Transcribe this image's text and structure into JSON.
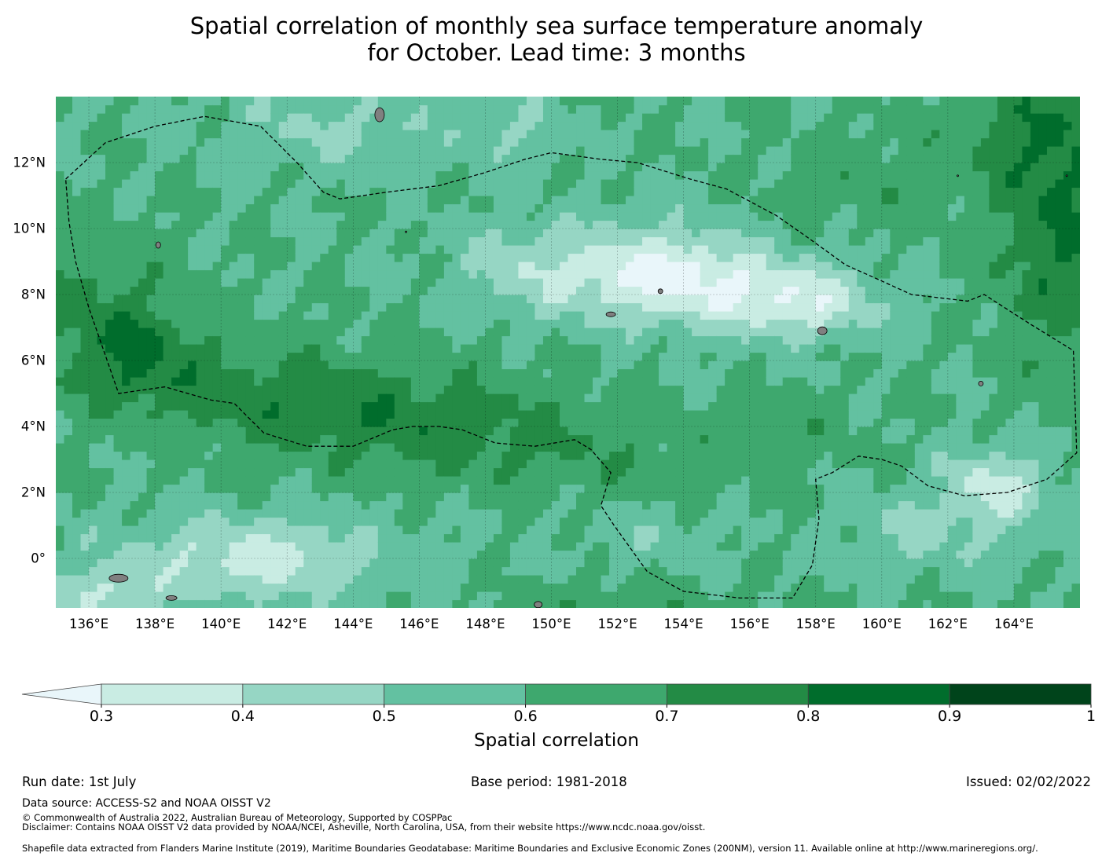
{
  "title": {
    "line1": "Spatial correlation of monthly sea surface temperature anomaly",
    "line2": "for October. Lead time: 3 months"
  },
  "map": {
    "lon_range": [
      135,
      166
    ],
    "lat_range": [
      -1.5,
      14
    ],
    "lon_ticks": [
      136,
      138,
      140,
      142,
      144,
      146,
      148,
      150,
      152,
      154,
      156,
      158,
      160,
      162,
      164
    ],
    "lon_labels": [
      "136°E",
      "138°E",
      "140°E",
      "142°E",
      "144°E",
      "146°E",
      "148°E",
      "150°E",
      "152°E",
      "154°E",
      "156°E",
      "158°E",
      "160°E",
      "162°E",
      "164°E"
    ],
    "lat_ticks": [
      12,
      10,
      8,
      6,
      4,
      2,
      0
    ],
    "lat_labels": [
      "12°N",
      "10°N",
      "8°N",
      "6°N",
      "4°N",
      "2°N",
      "0°"
    ],
    "land_color": "#808080",
    "eez_boundary": [
      [
        135.3,
        11.5
      ],
      [
        136.5,
        12.6
      ],
      [
        138.0,
        13.1
      ],
      [
        139.5,
        13.4
      ],
      [
        141.2,
        13.1
      ],
      [
        142.3,
        12.0
      ],
      [
        143.1,
        11.1
      ],
      [
        143.6,
        10.9
      ],
      [
        145.0,
        11.1
      ],
      [
        146.6,
        11.3
      ],
      [
        148.0,
        11.7
      ],
      [
        149.2,
        12.1
      ],
      [
        150.0,
        12.3
      ],
      [
        151.5,
        12.1
      ],
      [
        152.6,
        12.0
      ],
      [
        154.2,
        11.5
      ],
      [
        155.3,
        11.2
      ],
      [
        156.8,
        10.4
      ],
      [
        157.8,
        9.7
      ],
      [
        158.9,
        8.9
      ],
      [
        159.8,
        8.5
      ],
      [
        160.9,
        8.0
      ],
      [
        162.6,
        7.8
      ],
      [
        163.1,
        8.0
      ],
      [
        164.5,
        7.1
      ],
      [
        165.8,
        6.3
      ],
      [
        165.9,
        3.2
      ],
      [
        165.0,
        2.4
      ],
      [
        163.8,
        2.0
      ],
      [
        162.5,
        1.9
      ],
      [
        161.4,
        2.2
      ],
      [
        160.6,
        2.8
      ],
      [
        160.0,
        3.0
      ],
      [
        159.3,
        3.1
      ],
      [
        158.5,
        2.6
      ],
      [
        158.0,
        2.4
      ],
      [
        158.1,
        1.2
      ],
      [
        157.9,
        -0.2
      ],
      [
        157.3,
        -1.2
      ],
      [
        155.7,
        -1.2
      ],
      [
        154.0,
        -1.0
      ],
      [
        152.9,
        -0.4
      ],
      [
        151.9,
        1.0
      ],
      [
        151.5,
        1.6
      ],
      [
        151.8,
        2.6
      ],
      [
        151.2,
        3.3
      ],
      [
        150.7,
        3.6
      ],
      [
        149.5,
        3.4
      ],
      [
        148.3,
        3.5
      ],
      [
        147.3,
        3.9
      ],
      [
        146.6,
        4.0
      ],
      [
        145.8,
        4.0
      ],
      [
        145.2,
        3.9
      ],
      [
        144.0,
        3.4
      ],
      [
        142.6,
        3.4
      ],
      [
        141.3,
        3.8
      ],
      [
        140.4,
        4.7
      ],
      [
        139.7,
        4.8
      ],
      [
        139.0,
        5.0
      ],
      [
        138.3,
        5.2
      ],
      [
        136.9,
        5.0
      ],
      [
        136.0,
        7.6
      ],
      [
        135.6,
        9.0
      ],
      [
        135.4,
        10.2
      ],
      [
        135.3,
        11.5
      ]
    ]
  },
  "colorbar": {
    "ticks": [
      0.3,
      0.4,
      0.5,
      0.6,
      0.7,
      0.8,
      0.9,
      1
    ],
    "tick_labels": [
      "0.3",
      "0.4",
      "0.5",
      "0.6",
      "0.7",
      "0.8",
      "0.9",
      "1"
    ],
    "colors": [
      "#c9ece3",
      "#96d6c4",
      "#63c1a1",
      "#3ea86e",
      "#238b45",
      "#006d2c",
      "#00441b"
    ],
    "under_color": "#e9f6fa",
    "label": "Spatial correlation"
  },
  "chart_data": {
    "type": "heatmap",
    "title": "Spatial correlation of monthly sea surface temperature anomaly for October. Lead time: 3 months",
    "xlabel": "",
    "ylabel": "",
    "x_range": [
      135,
      166
    ],
    "y_range": [
      -1.5,
      14
    ],
    "colorbar_label": "Spatial correlation",
    "levels": [
      0.3,
      0.4,
      0.5,
      0.6,
      0.7,
      0.8,
      0.9,
      1
    ],
    "regions": [
      {
        "lon": [
          148.5,
          158.5
        ],
        "lat": [
          7.0,
          10.5
        ],
        "value": 0.3
      },
      {
        "lon": [
          135.0,
          145.0
        ],
        "lat": [
          -1.5,
          1.0
        ],
        "value": 0.4
      },
      {
        "lon": [
          136.0,
          152.0
        ],
        "lat": [
          3.0,
          7.0
        ],
        "value": 0.75
      },
      {
        "lon": [
          162.0,
          166.0
        ],
        "lat": [
          7.0,
          14.0
        ],
        "value": 0.7
      },
      {
        "lon": [
          160.0,
          166.0
        ],
        "lat": [
          0.0,
          4.0
        ],
        "value": 0.45
      },
      {
        "lon": [
          150.0,
          158.0
        ],
        "lat": [
          -1.5,
          2.5
        ],
        "value": 0.55
      }
    ]
  },
  "footer": {
    "run_date": "Run date: 1st July",
    "base_period": "Base period: 1981-2018",
    "issued": "Issued: 02/02/2022",
    "data_source": "Data source: ACCESS-S2 and NOAA OISST V2",
    "copyright": "© Commonwealth of Australia 2022, Australian Bureau of Meteorology, Supported by COSPPac",
    "disclaimer": "Disclaimer: Contains NOAA OISST V2 data provided by NOAA/NCEI, Asheville, North Carolina, USA, from their website https://www.ncdc.noaa.gov/oisst.",
    "shapefile": "Shapefile data extracted from Flanders Marine Institute (2019), Maritime Boundaries Geodatabase: Maritime Boundaries and Exclusive Economic Zones (200NM), version 11. Available online at http://www.marineregions.org/."
  }
}
